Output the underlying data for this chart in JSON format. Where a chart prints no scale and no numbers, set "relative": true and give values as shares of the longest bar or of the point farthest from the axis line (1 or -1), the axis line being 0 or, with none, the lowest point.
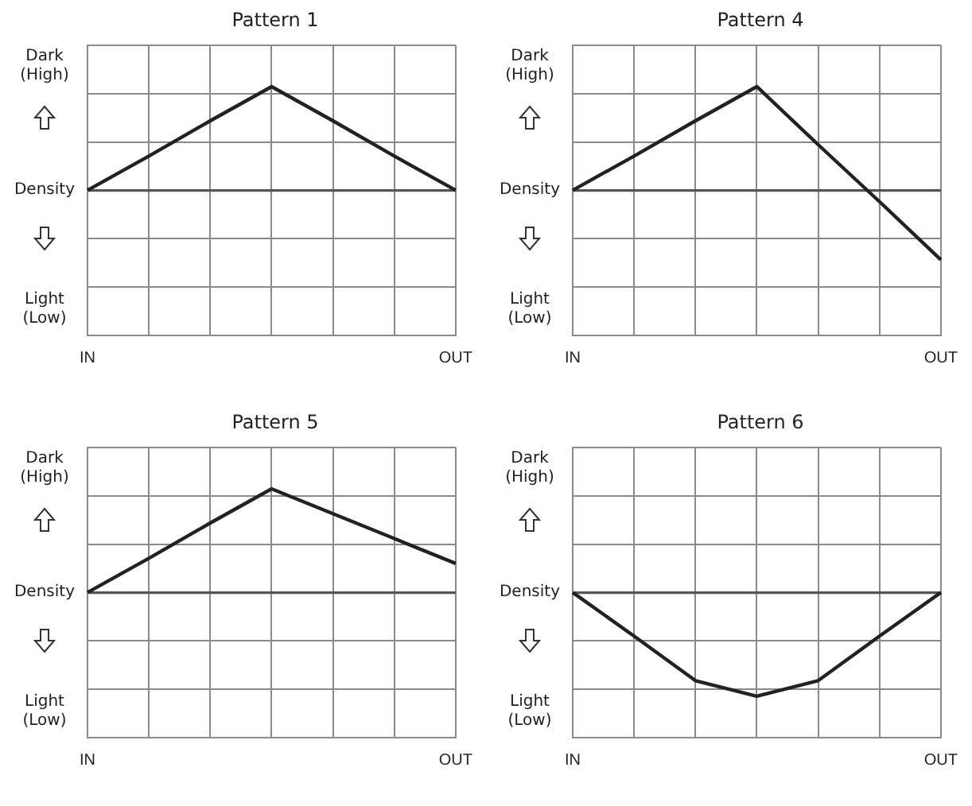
{
  "chart_data": [
    {
      "type": "line",
      "title": "Pattern 1",
      "relative": true,
      "categories": [
        "IN",
        null,
        null,
        null,
        null,
        null,
        "OUT"
      ],
      "series": [
        {
          "color": "#222222",
          "values": [
            0,
            0.33,
            0.67,
            1,
            0.67,
            0.33,
            0
          ]
        }
      ],
      "grid": true,
      "legend": false,
      "marker": "none",
      "annotations": [
        "Dark (High)",
        "Density",
        "Light (Low)"
      ]
    },
    {
      "type": "line",
      "title": "Pattern 4",
      "relative": true,
      "categories": [
        "IN",
        null,
        null,
        null,
        null,
        null,
        "OUT"
      ],
      "series": [
        {
          "color": "#222222",
          "values": [
            0,
            0.33,
            0.67,
            1,
            0.44,
            -0.11,
            -0.67
          ]
        }
      ],
      "grid": true,
      "legend": false,
      "marker": "none",
      "annotations": [
        "Dark (High)",
        "Density",
        "Light (Low)"
      ]
    },
    {
      "type": "line",
      "title": "Pattern 5",
      "relative": true,
      "categories": [
        "IN",
        null,
        null,
        null,
        null,
        null,
        "OUT"
      ],
      "series": [
        {
          "color": "#222222",
          "values": [
            0,
            0.33,
            0.67,
            1,
            0.76,
            0.52,
            0.28
          ]
        }
      ],
      "grid": true,
      "legend": false,
      "marker": "none",
      "annotations": [
        "Dark (High)",
        "Density",
        "Light (Low)"
      ]
    },
    {
      "type": "line",
      "title": "Pattern 6",
      "relative": true,
      "categories": [
        "IN",
        null,
        null,
        null,
        null,
        null,
        "OUT"
      ],
      "series": [
        {
          "color": "#222222",
          "values": [
            0,
            -0.42,
            -0.85,
            -1,
            -0.85,
            -0.42,
            0
          ]
        }
      ],
      "grid": true,
      "legend": false,
      "marker": "none",
      "annotations": [
        "Dark (High)",
        "Density",
        "Light (Low)"
      ]
    }
  ]
}
